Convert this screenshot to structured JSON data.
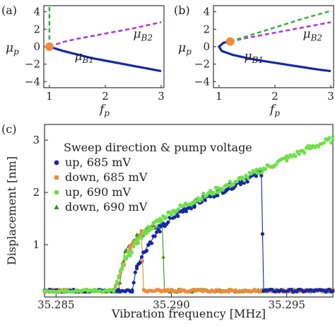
{
  "colors": {
    "blue": "#1428a8",
    "purple_dash": "#b236e0",
    "green_dash": "#35b840",
    "orange_marker": "#f08a3a",
    "green_light": "#6fe04a",
    "green_dark": "#3f8f1e"
  },
  "chart_data": [
    {
      "panel_label": "(a)",
      "type": "line",
      "xlabel": "f_p",
      "ylabel": "μ_p",
      "xlim": [
        0.9,
        3.05
      ],
      "ylim": [
        -4.7,
        4.7
      ],
      "xticks": [
        "1",
        "2",
        "3"
      ],
      "yticks": [
        "4",
        "2",
        "0",
        "−2",
        "−4"
      ],
      "series": [
        {
          "name": "μ_B1",
          "style": "solid",
          "color": "#1428a8",
          "x": [
            1.0,
            1.25,
            1.5,
            1.75,
            2.0,
            2.25,
            2.5,
            2.75,
            3.0
          ],
          "y": [
            0.0,
            -0.5,
            -0.9,
            -1.3,
            -1.6,
            -1.9,
            -2.2,
            -2.5,
            -2.8
          ]
        },
        {
          "name": "μ_B2",
          "style": "dashed",
          "color": "#b236e0",
          "x": [
            1.0,
            1.25,
            1.5,
            1.75,
            2.0,
            2.25,
            2.5,
            2.75,
            3.0
          ],
          "y": [
            0.0,
            0.55,
            0.9,
            1.2,
            1.5,
            1.8,
            2.1,
            2.45,
            2.8
          ]
        },
        {
          "name": "",
          "style": "dashed",
          "color": "#35b840",
          "x": [
            1.0,
            1.0
          ],
          "y": [
            0.0,
            4.7
          ]
        }
      ],
      "marker": {
        "x": 1.0,
        "y": 0.0,
        "color": "#f08a3a"
      },
      "annotations": [
        {
          "text": "μB1",
          "x": 1.45,
          "y": -1.55
        },
        {
          "text": "μB2",
          "x": 2.5,
          "y": 1.0
        }
      ]
    },
    {
      "panel_label": "(b)",
      "type": "line",
      "xlabel": "f_p",
      "ylabel": "μ_p",
      "xlim": [
        0.9,
        3.05
      ],
      "ylim": [
        -4.7,
        4.7
      ],
      "xticks": [
        "1",
        "2",
        "3"
      ],
      "yticks": [
        "4",
        "2",
        "0",
        "−2",
        "−4"
      ],
      "series": [
        {
          "name": "μ_B1",
          "style": "solid",
          "color": "#1428a8",
          "x": [
            1.2,
            1.08,
            1.0,
            1.05,
            1.25,
            1.5,
            1.75,
            2.0,
            2.25,
            2.5,
            2.75,
            3.0
          ],
          "y": [
            0.6,
            0.45,
            0.0,
            -0.5,
            -0.95,
            -1.3,
            -1.6,
            -1.85,
            -2.1,
            -2.35,
            -2.6,
            -2.8
          ]
        },
        {
          "name": "μ_B2",
          "style": "dashed",
          "color": "#b236e0",
          "x": [
            1.2,
            1.5,
            1.75,
            2.0,
            2.25,
            2.5,
            2.75,
            3.0
          ],
          "y": [
            0.6,
            1.0,
            1.3,
            1.6,
            1.9,
            2.2,
            2.5,
            2.8
          ]
        },
        {
          "name": "",
          "style": "dashed",
          "color": "#35b840",
          "x": [
            1.2,
            1.5,
            1.75,
            2.0,
            2.25,
            2.5,
            2.75,
            3.0
          ],
          "y": [
            0.6,
            1.2,
            1.7,
            2.2,
            2.7,
            3.2,
            3.65,
            4.1
          ]
        }
      ],
      "marker": {
        "x": 1.2,
        "y": 0.6,
        "color": "#f08a3a"
      },
      "annotations": [
        {
          "text": "μB1",
          "x": 1.45,
          "y": -1.55
        },
        {
          "text": "μB2",
          "x": 2.5,
          "y": 1.0
        }
      ]
    },
    {
      "panel_label": "(c)",
      "type": "scatter",
      "xlabel": "Vibration frequency [MHz]",
      "ylabel": "Displacement [nm]",
      "xlim": [
        35.2845,
        35.297
      ],
      "ylim": [
        0.0,
        3.3
      ],
      "xticks": [
        "35.285",
        "35.290",
        "35.295"
      ],
      "yticks": [
        "1",
        "2",
        "3"
      ],
      "legend": {
        "title": "Sweep direction & pump voltage",
        "placement": "top-left"
      },
      "series": [
        {
          "name": "up, 685 mV",
          "marker": "circle",
          "color": "#1428a8",
          "x": [
            35.2845,
            35.2883,
            35.2885,
            35.289,
            35.2895,
            35.29,
            35.2905,
            35.291,
            35.292,
            35.293,
            35.2939,
            35.294,
            35.297
          ],
          "y": [
            0.12,
            0.12,
            0.6,
            1.0,
            1.3,
            1.5,
            1.65,
            1.78,
            2.0,
            2.2,
            2.38,
            0.12,
            0.12
          ]
        },
        {
          "name": "down, 685 mV",
          "marker": "square",
          "color": "#f08a3a",
          "x": [
            35.297,
            35.2888,
            35.2887,
            35.2882,
            35.2878,
            35.2875,
            35.2845
          ],
          "y": [
            0.12,
            0.12,
            1.25,
            0.9,
            0.5,
            0.12,
            0.12
          ]
        },
        {
          "name": "up, 690 mV",
          "marker": "circle",
          "color": "#6fe04a",
          "x": [
            35.2845,
            35.2875,
            35.288,
            35.2885,
            35.289,
            35.2895,
            35.29,
            35.291,
            35.292,
            35.293,
            35.294,
            35.295,
            35.296,
            35.297
          ],
          "y": [
            0.12,
            0.12,
            0.7,
            1.05,
            1.3,
            1.48,
            1.62,
            1.85,
            2.05,
            2.25,
            2.45,
            2.65,
            2.85,
            3.02
          ]
        },
        {
          "name": "down, 690 mV",
          "marker": "triangle",
          "color": "#3f8f1e",
          "x": [
            35.297,
            35.2897,
            35.2896,
            35.289,
            35.2885,
            35.288,
            35.2877,
            35.2845
          ],
          "y": [
            0.12,
            0.12,
            1.42,
            1.3,
            1.15,
            0.9,
            0.12,
            0.12
          ]
        }
      ]
    }
  ]
}
